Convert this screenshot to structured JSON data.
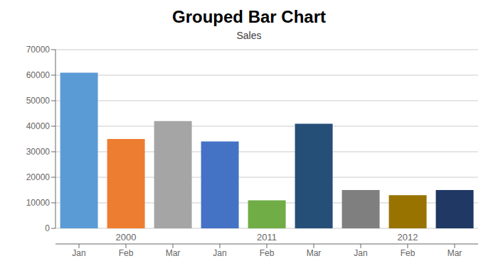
{
  "chart_data": {
    "type": "bar",
    "title": "Grouped Bar Chart",
    "subtitle": "Sales",
    "categories": [
      "Jan",
      "Feb",
      "Mar",
      "Jan",
      "Feb",
      "Mar",
      "Jan",
      "Feb",
      "Mar"
    ],
    "groups": [
      "2000",
      "2011",
      "2012"
    ],
    "values": [
      61000,
      35000,
      42000,
      34000,
      11000,
      41000,
      15000,
      13000,
      15000
    ],
    "colors": [
      "#5b9bd5",
      "#ed7d31",
      "#a5a5a5",
      "#4472c4",
      "#70ad47",
      "#264f78",
      "#7f7f7f",
      "#997300",
      "#1f3864"
    ],
    "ylim": [
      0,
      70000
    ],
    "yticks": [
      0,
      10000,
      20000,
      30000,
      40000,
      50000,
      60000,
      70000
    ],
    "grid": true
  }
}
